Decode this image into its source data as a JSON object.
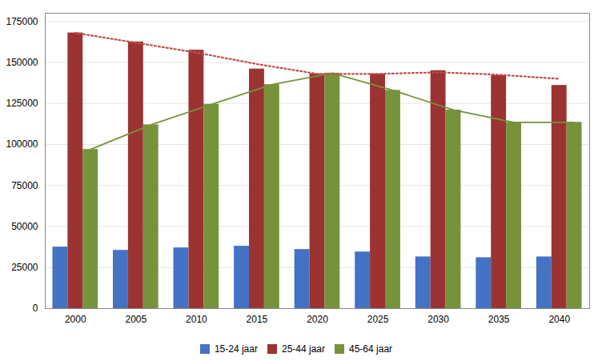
{
  "chart_data": {
    "type": "bar",
    "categories": [
      "2000",
      "2005",
      "2010",
      "2015",
      "2020",
      "2025",
      "2030",
      "2035",
      "2040"
    ],
    "series": [
      {
        "name": "15-24 jaar",
        "color": "#4472C4",
        "values": [
          37500,
          35500,
          37000,
          38000,
          36000,
          34500,
          31500,
          31000,
          31500
        ]
      },
      {
        "name": "25-44 jaar",
        "color": "#9B3332",
        "values": [
          168000,
          162500,
          157500,
          146000,
          143000,
          143000,
          145000,
          142000,
          136000
        ]
      },
      {
        "name": "45-64 jaar",
        "color": "#76933C",
        "values": [
          97000,
          112000,
          124500,
          136500,
          143500,
          133000,
          121000,
          113500,
          113500
        ]
      },
      {
        "type": "line",
        "color": "#76933C",
        "line_style": "solid",
        "values": [
          97000,
          112000,
          124500,
          136500,
          143500,
          133000,
          121000,
          113500,
          113500
        ]
      },
      {
        "type": "line",
        "color": "#C0504D",
        "line_style": "dotted",
        "values": [
          168000,
          162000,
          156000,
          149000,
          143000,
          143000,
          144000,
          142500,
          140000
        ]
      }
    ],
    "ylim": [
      0,
      180000
    ],
    "yticks": [
      0,
      25000,
      50000,
      75000,
      100000,
      125000,
      150000,
      175000
    ],
    "grid": true,
    "legend": "bottom"
  }
}
